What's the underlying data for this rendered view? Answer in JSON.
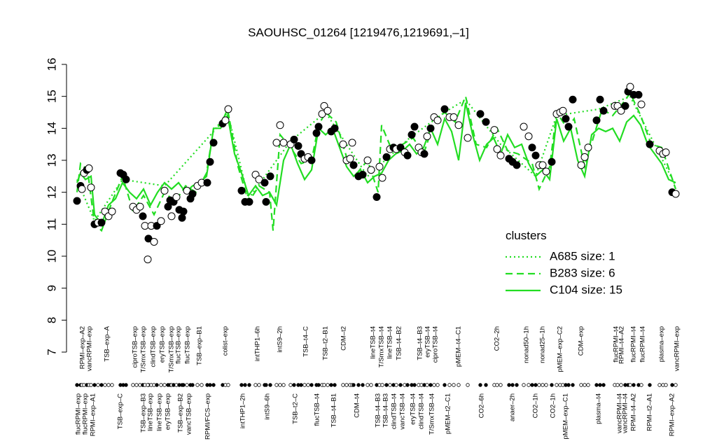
{
  "chart_data": {
    "type": "scatter",
    "title": "SAOUHSC_01264 [1219476,1219691,–1]",
    "xlim": [
      100,
      975
    ],
    "ylim": [
      7,
      16
    ],
    "yticks": [
      7,
      8,
      9,
      10,
      11,
      12,
      13,
      14,
      15,
      16
    ],
    "points": {
      "x": [
        110,
        115,
        117,
        120,
        124,
        127,
        130,
        135,
        140,
        145,
        150,
        155,
        160,
        172,
        176,
        180,
        190,
        195,
        200,
        204,
        207,
        212,
        211,
        216,
        220,
        224,
        230,
        235,
        240,
        243,
        245,
        248,
        252,
        256,
        260,
        262,
        267,
        272,
        275,
        282,
        288,
        296,
        300,
        305,
        318,
        322,
        326,
        345,
        350,
        356,
        365,
        370,
        378,
        380,
        386,
        395,
        400,
        405,
        415,
        420,
        426,
        430,
        435,
        440,
        445,
        452,
        455,
        460,
        463,
        468,
        473,
        478,
        490,
        495,
        500,
        503,
        505,
        512,
        518,
        525,
        530,
        538,
        542,
        546,
        552,
        557,
        562,
        566,
        572,
        578,
        582,
        588,
        592,
        598,
        602,
        606,
        610,
        615,
        620,
        625,
        635,
        642,
        648,
        655,
        668,
        686,
        694,
        706,
        710,
        715,
        727,
        732,
        738,
        748,
        755,
        760,
        765,
        770,
        775,
        780,
        788,
        795,
        800,
        804,
        808,
        812,
        818,
        830,
        835,
        840,
        852,
        857,
        862,
        878,
        882,
        887,
        893,
        897,
        900,
        905,
        912,
        916,
        928,
        942,
        947,
        951,
        960,
        965
      ],
      "values": [
        11.73,
        12.2,
        12.1,
        12.6,
        12.7,
        12.75,
        12.15,
        11.0,
        11.05,
        11.05,
        11.4,
        11.25,
        11.4,
        12.6,
        12.55,
        12.4,
        11.55,
        11.45,
        11.55,
        11.25,
        10.95,
        10.55,
        9.9,
        10.95,
        10.45,
        10.95,
        11.1,
        12.05,
        11.55,
        11.75,
        11.25,
        11.7,
        11.85,
        11.45,
        11.2,
        11.4,
        12.05,
        11.8,
        11.95,
        12.2,
        12.3,
        12.3,
        12.95,
        13.55,
        14.15,
        14.25,
        14.6,
        12.05,
        11.7,
        11.7,
        12.55,
        12.4,
        12.3,
        11.7,
        12.5,
        13.55,
        14.1,
        13.55,
        13.5,
        13.65,
        13.45,
        13.2,
        13.05,
        13.1,
        13.0,
        13.85,
        14.05,
        14.45,
        14.7,
        14.55,
        13.9,
        14.0,
        13.5,
        13.0,
        13.05,
        13.55,
        12.85,
        12.5,
        12.55,
        13.0,
        12.7,
        11.85,
        12.8,
        12.45,
        13.1,
        13.35,
        13.4,
        13.35,
        13.4,
        13.25,
        13.15,
        13.8,
        14.05,
        13.4,
        13.25,
        13.2,
        13.75,
        14.0,
        14.35,
        14.25,
        14.6,
        14.35,
        14.35,
        14.1,
        13.7,
        14.45,
        14.2,
        13.95,
        13.35,
        13.15,
        13.05,
        12.95,
        12.85,
        14.05,
        13.75,
        13.4,
        13.15,
        12.85,
        12.85,
        12.65,
        12.95,
        14.45,
        14.5,
        14.55,
        14.3,
        14.05,
        14.9,
        12.85,
        13.1,
        13.4,
        14.25,
        14.9,
        14.55,
        14.7,
        14.7,
        14.55,
        14.7,
        15.15,
        15.3,
        15.05,
        15.05,
        14.75,
        13.5,
        13.3,
        13.2,
        13.25,
        12.0,
        11.95
      ],
      "fill": [
        "#000",
        "#000",
        "#fff",
        "#fff",
        "#000",
        "#fff",
        "#fff",
        "#000",
        "#fff",
        "#000",
        "#fff",
        "#fff",
        "#fff",
        "#000",
        "#000",
        "#000",
        "#fff",
        "#fff",
        "#fff",
        "#000",
        "#fff",
        "#000",
        "#fff",
        "#fff",
        "#fff",
        "#000",
        "#fff",
        "#fff",
        "#000",
        "#000",
        "#fff",
        "#000",
        "#fff",
        "#000",
        "#000",
        "#000",
        "#fff",
        "#000",
        "#000",
        "#fff",
        "#fff",
        "#000",
        "#000",
        "#000",
        "#000",
        "#fff",
        "#fff",
        "#000",
        "#000",
        "#000",
        "#fff",
        "#fff",
        "#000",
        "#000",
        "#000",
        "#fff",
        "#fff",
        "#fff",
        "#fff",
        "#000",
        "#000",
        "#000",
        "#fff",
        "#fff",
        "#000",
        "#000",
        "#000",
        "#fff",
        "#fff",
        "#fff",
        "#000",
        "#000",
        "#fff",
        "#fff",
        "#fff",
        "#fff",
        "#000",
        "#000",
        "#000",
        "#fff",
        "#fff",
        "#000",
        "#fff",
        "#fff",
        "#000",
        "#fff",
        "#000",
        "#fff",
        "#000",
        "#fff",
        "#000",
        "#000",
        "#000",
        "#fff",
        "#fff",
        "#000",
        "#fff",
        "#000",
        "#fff",
        "#fff",
        "#000",
        "#fff",
        "#fff",
        "#fff",
        "#fff",
        "#000",
        "#000",
        "#fff",
        "#fff",
        "#fff",
        "#000",
        "#000",
        "#000",
        "#fff",
        "#fff",
        "#000",
        "#000",
        "#fff",
        "#fff",
        "#fff",
        "#000",
        "#fff",
        "#fff",
        "#fff",
        "#000",
        "#000",
        "#000",
        "#fff",
        "#fff",
        "#fff",
        "#000",
        "#000",
        "#000",
        "#fff",
        "#fff",
        "#fff",
        "#000",
        "#000",
        "#fff",
        "#000",
        "#000",
        "#fff",
        "#000",
        "#fff",
        "#fff",
        "#fff",
        "#000",
        "#fff"
      ]
    },
    "legend_title": "clusters",
    "line_color": "#22dd22",
    "series": [
      {
        "name": "A685 size: 1",
        "dash": "dotted",
        "x": [
          110,
          135,
          175,
          235,
          305,
          325,
          355,
          415,
          465,
          525,
          585,
          635,
          665,
          715,
          765,
          795,
          855,
          900,
          965
        ],
        "values": [
          12.4,
          11.1,
          12.4,
          12.2,
          13.9,
          14.5,
          11.8,
          13.6,
          14.5,
          12.5,
          13.7,
          14.5,
          14.9,
          13.5,
          12.5,
          14.4,
          14.6,
          15.0,
          12.2
        ]
      },
      {
        "name": "B283 size: 6",
        "dash": "dashed",
        "x": [
          110,
          115,
          125,
          135,
          145,
          160,
          175,
          190,
          205,
          220,
          235,
          250,
          265,
          280,
          295,
          305,
          315,
          325,
          340,
          355,
          370,
          385,
          390,
          400,
          415,
          430,
          445,
          455,
          465,
          480,
          495,
          510,
          525,
          540,
          545,
          560,
          575,
          590,
          605,
          620,
          635,
          650,
          665,
          680,
          695,
          710,
          725,
          740,
          760,
          770,
          785,
          795,
          810,
          820,
          835,
          850,
          860,
          875,
          890,
          900,
          915,
          930,
          945,
          965
        ],
        "values": [
          12.0,
          12.9,
          12.7,
          11.0,
          10.8,
          11.7,
          12.5,
          11.4,
          11.9,
          11.3,
          12.0,
          11.7,
          12.2,
          12.0,
          12.6,
          14.0,
          14.1,
          14.6,
          12.8,
          11.7,
          12.2,
          12.0,
          10.8,
          13.8,
          13.4,
          12.9,
          13.0,
          14.1,
          14.5,
          14.2,
          13.1,
          12.6,
          13.0,
          12.0,
          14.1,
          13.3,
          13.5,
          13.7,
          13.2,
          14.2,
          14.5,
          14.2,
          15.0,
          13.5,
          13.4,
          14.0,
          13.3,
          13.2,
          12.9,
          12.1,
          12.8,
          14.5,
          14.0,
          14.3,
          12.8,
          13.9,
          14.6,
          14.4,
          14.8,
          15.1,
          14.4,
          13.5,
          13.4,
          12.1
        ]
      },
      {
        "name": "C104 size: 15",
        "dash": "solid",
        "x": [
          110,
          115,
          122,
          130,
          135,
          145,
          155,
          165,
          175,
          185,
          195,
          205,
          215,
          225,
          235,
          245,
          255,
          265,
          275,
          285,
          295,
          305,
          315,
          325,
          335,
          345,
          355,
          365,
          375,
          385,
          395,
          405,
          415,
          425,
          435,
          445,
          455,
          465,
          475,
          485,
          495,
          505,
          515,
          525,
          535,
          545,
          555,
          565,
          575,
          585,
          595,
          605,
          615,
          625,
          635,
          645,
          655,
          665,
          675,
          685,
          695,
          705,
          715,
          725,
          735,
          745,
          755,
          765,
          775,
          785,
          795,
          805,
          815,
          825,
          835,
          845,
          855,
          865,
          875,
          885,
          895,
          905,
          915,
          925,
          935,
          945,
          955,
          965
        ],
        "values": [
          12.3,
          12.6,
          12.4,
          12.5,
          11.3,
          11.0,
          11.6,
          11.8,
          12.3,
          12.0,
          11.8,
          12.1,
          11.6,
          12.0,
          12.3,
          12.1,
          12.3,
          12.0,
          12.2,
          12.3,
          12.5,
          14.0,
          14.0,
          14.4,
          13.2,
          12.6,
          11.9,
          12.2,
          11.9,
          12.0,
          11.6,
          13.0,
          13.5,
          12.9,
          12.4,
          12.7,
          14.0,
          13.8,
          14.0,
          13.4,
          12.8,
          12.5,
          12.7,
          12.3,
          12.5,
          12.6,
          13.0,
          13.2,
          13.3,
          13.5,
          13.2,
          13.4,
          14.0,
          13.5,
          14.3,
          13.9,
          13.0,
          14.8,
          13.8,
          13.0,
          13.5,
          13.7,
          13.2,
          13.8,
          13.4,
          13.5,
          12.9,
          12.5,
          12.7,
          12.4,
          14.3,
          13.6,
          14.0,
          13.0,
          12.5,
          13.8,
          14.0,
          13.9,
          14.0,
          13.6,
          14.2,
          14.4,
          14.1,
          13.5,
          13.2,
          12.9,
          12.4,
          12.3
        ]
      }
    ],
    "top_labels": [
      {
        "value": 118,
        "label": "RPMI–exp–A2"
      },
      {
        "value": 128,
        "label": "vancRPMI–exp"
      },
      {
        "value": 153,
        "label": "TSB–exp–A"
      },
      {
        "value": 193,
        "label": "ciproTSB–exp"
      },
      {
        "value": 205,
        "label": "T/SmxTSB–exp"
      },
      {
        "value": 219,
        "label": "clindTSB–exp"
      },
      {
        "value": 232,
        "label": "eryTSB–exp"
      },
      {
        "value": 245,
        "label": "T/SmxTSB–exp"
      },
      {
        "value": 255,
        "label": "flucTSB–exp"
      },
      {
        "value": 268,
        "label": "flucTSB–exp"
      },
      {
        "value": 285,
        "label": "TSB–exp–B1"
      },
      {
        "value": 322,
        "label": "colist–exp"
      },
      {
        "value": 368,
        "label": "intTHP1–6h"
      },
      {
        "value": 400,
        "label": "intS9–2h"
      },
      {
        "value": 437,
        "label": "TSB–t4–C"
      },
      {
        "value": 465,
        "label": "TSB–t2–B1"
      },
      {
        "value": 491,
        "label": "CDM–t2"
      },
      {
        "value": 533,
        "label": "lineTSB–t4"
      },
      {
        "value": 545,
        "label": "T/SmxTSB–t4"
      },
      {
        "value": 557,
        "label": "lineTSB–t4"
      },
      {
        "value": 570,
        "label": "TSB–t4–B2"
      },
      {
        "value": 600,
        "label": "TSB–t4–B3"
      },
      {
        "value": 611,
        "label": "eryTSB–t4"
      },
      {
        "value": 622,
        "label": "ciproTSB–t4"
      },
      {
        "value": 655,
        "label": "pMEM–t4–C1"
      },
      {
        "value": 710,
        "label": "CO2–2h"
      },
      {
        "value": 752,
        "label": "nonad50–1h"
      },
      {
        "value": 775,
        "label": "nonad25–1h"
      },
      {
        "value": 800,
        "label": "pMEM–exp–C2"
      },
      {
        "value": 830,
        "label": "CDM–exp"
      },
      {
        "value": 880,
        "label": "flucRPMI–t4"
      },
      {
        "value": 888,
        "label": "RPMI–t4–A2"
      },
      {
        "value": 905,
        "label": "flucRPMI–t4"
      },
      {
        "value": 918,
        "label": "flucRPMI–t4"
      },
      {
        "value": 945,
        "label": "plasma–exp"
      },
      {
        "value": 967,
        "label": "vancRPMI–exp"
      }
    ],
    "bottom_labels": [
      {
        "value": 112,
        "label": "flucRPMI–exp"
      },
      {
        "value": 122,
        "label": "flucRPMI–exp"
      },
      {
        "value": 133,
        "label": "RPMI–exp–A1"
      },
      {
        "value": 172,
        "label": "TSB–exp–C"
      },
      {
        "value": 205,
        "label": "TSB–exp–B3"
      },
      {
        "value": 215,
        "label": "lineTSB–exp"
      },
      {
        "value": 228,
        "label": "lineTSB–exp"
      },
      {
        "value": 240,
        "label": "eryTSB–exp"
      },
      {
        "value": 258,
        "label": "TSB–exp–B2"
      },
      {
        "value": 270,
        "label": "vancTSB–exp"
      },
      {
        "value": 297,
        "label": "RPMI/FCS–exp"
      },
      {
        "value": 347,
        "label": "intTHP1–2h"
      },
      {
        "value": 382,
        "label": "intS9–6h"
      },
      {
        "value": 422,
        "label": "TSB–t2–C"
      },
      {
        "value": 453,
        "label": "flucTSB–t4"
      },
      {
        "value": 477,
        "label": "TSB–t4–B1"
      },
      {
        "value": 510,
        "label": "CDM–t4"
      },
      {
        "value": 540,
        "label": "TSB–t4–B3"
      },
      {
        "value": 551,
        "label": "TSB–t4–B3"
      },
      {
        "value": 563,
        "label": "clindTSB–t4"
      },
      {
        "value": 575,
        "label": "vancTSB–t4"
      },
      {
        "value": 590,
        "label": "eryTSB–t4"
      },
      {
        "value": 602,
        "label": "clindTSB–t4"
      },
      {
        "value": 617,
        "label": "T/SmxTSB–t4"
      },
      {
        "value": 640,
        "label": "pMEM–t2–C1"
      },
      {
        "value": 688,
        "label": "CO2–6h"
      },
      {
        "value": 732,
        "label": "anaer–2h"
      },
      {
        "value": 765,
        "label": "CO2–1h"
      },
      {
        "value": 790,
        "label": "CO2–1h"
      },
      {
        "value": 808,
        "label": "pMEM–exp–C1"
      },
      {
        "value": 855,
        "label": "plasma–t4"
      },
      {
        "value": 885,
        "label": "vancRPMI–t4"
      },
      {
        "value": 893,
        "label": "vancRPMI–t4"
      },
      {
        "value": 905,
        "label": "RPMI–t4–A2"
      },
      {
        "value": 928,
        "label": "RPMI–t2–A1"
      },
      {
        "value": 960,
        "label": "RPMI–exp–A2"
      }
    ]
  }
}
